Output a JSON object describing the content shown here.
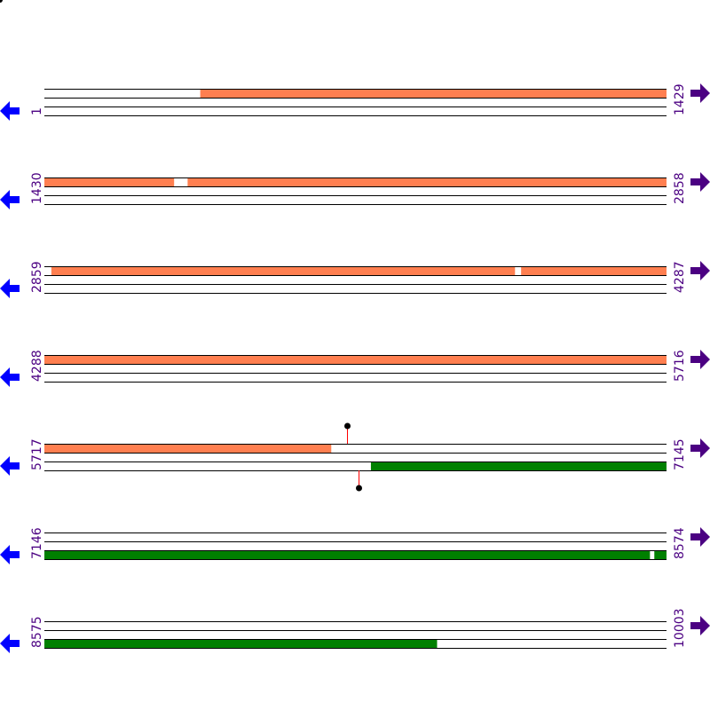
{
  "colors": {
    "forward_feature": "#ff7f50",
    "reverse_feature": "#008000",
    "strand_line": "#000000",
    "left_arrow": "#0000ff",
    "right_arrow": "#4b0082",
    "label": "#4b0082",
    "marker_stem": "#ff0000"
  },
  "icons": {
    "left": "arrow-left-icon",
    "right": "arrow-right-icon"
  },
  "rows": [
    {
      "start": "1",
      "end": "1429",
      "s": 1,
      "e": 1429,
      "features": [
        {
          "strand": "top",
          "color": "forward",
          "from": 359,
          "to": 1429
        }
      ],
      "markers": []
    },
    {
      "start": "1430",
      "end": "2858",
      "s": 1430,
      "e": 2858,
      "features": [
        {
          "strand": "top",
          "color": "forward",
          "from": 1430,
          "to": 1727
        },
        {
          "strand": "top",
          "color": "forward",
          "from": 1759,
          "to": 2858
        }
      ],
      "markers": []
    },
    {
      "start": "2859",
      "end": "4287",
      "s": 2859,
      "e": 4287,
      "features": [
        {
          "strand": "top",
          "color": "forward",
          "from": 2875,
          "to": 3939
        },
        {
          "strand": "top",
          "color": "forward",
          "from": 3954,
          "to": 4287
        }
      ],
      "markers": []
    },
    {
      "start": "4288",
      "end": "5716",
      "s": 4288,
      "e": 5716,
      "features": [
        {
          "strand": "top",
          "color": "forward",
          "from": 4288,
          "to": 5716
        }
      ],
      "markers": []
    },
    {
      "start": "5717",
      "end": "7145",
      "s": 5717,
      "e": 7145,
      "features": [
        {
          "strand": "top",
          "color": "forward",
          "from": 5717,
          "to": 6375
        },
        {
          "strand": "bottom",
          "color": "reverse",
          "from": 6467,
          "to": 7145
        }
      ],
      "markers": [
        {
          "strand": "top",
          "pos": 6412
        },
        {
          "strand": "bottom",
          "pos": 6439
        }
      ]
    },
    {
      "start": "7146",
      "end": "8574",
      "s": 7146,
      "e": 8574,
      "features": [
        {
          "strand": "bottom",
          "color": "reverse",
          "from": 7146,
          "to": 8536
        },
        {
          "strand": "bottom",
          "color": "reverse",
          "from": 8547,
          "to": 8574
        }
      ],
      "markers": []
    },
    {
      "start": "8575",
      "end": "10003",
      "s": 8575,
      "e": 10003,
      "features": [
        {
          "strand": "bottom",
          "color": "reverse",
          "from": 8575,
          "to": 9476
        }
      ],
      "markers": []
    }
  ]
}
